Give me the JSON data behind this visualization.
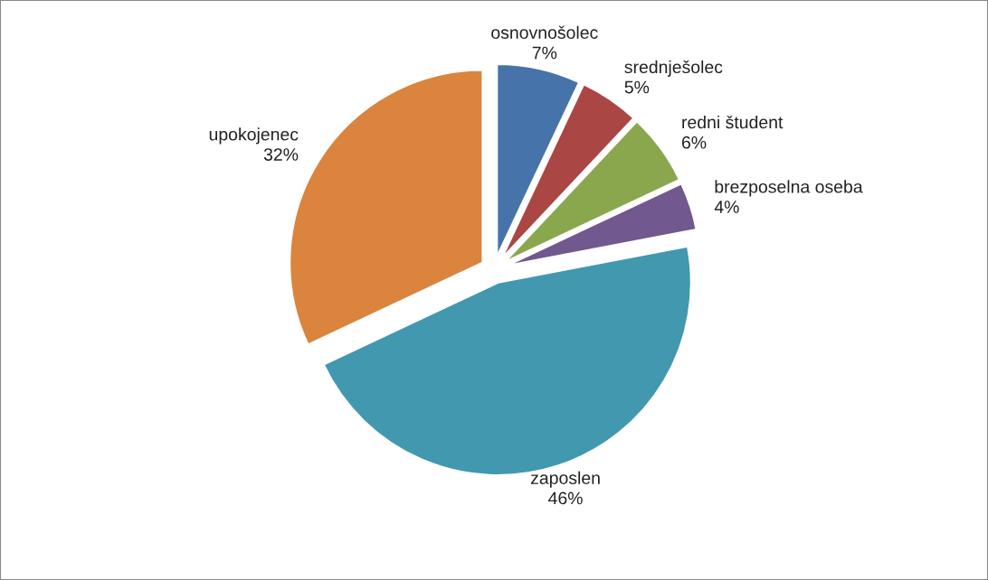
{
  "chart_data": {
    "type": "pie",
    "categories": [
      "osnovnošolec",
      "srednješolec",
      "redni študent",
      "brezposelna oseba",
      "zaposlen",
      "upokojenec"
    ],
    "values": [
      7,
      5,
      6,
      4,
      46,
      32
    ],
    "value_labels": [
      "7%",
      "5%",
      "6%",
      "4%",
      "46%",
      "32%"
    ],
    "colors": [
      "#4674aa",
      "#aa4644",
      "#8aa74e",
      "#71588f",
      "#4198af",
      "#db843d"
    ],
    "legend": false
  }
}
